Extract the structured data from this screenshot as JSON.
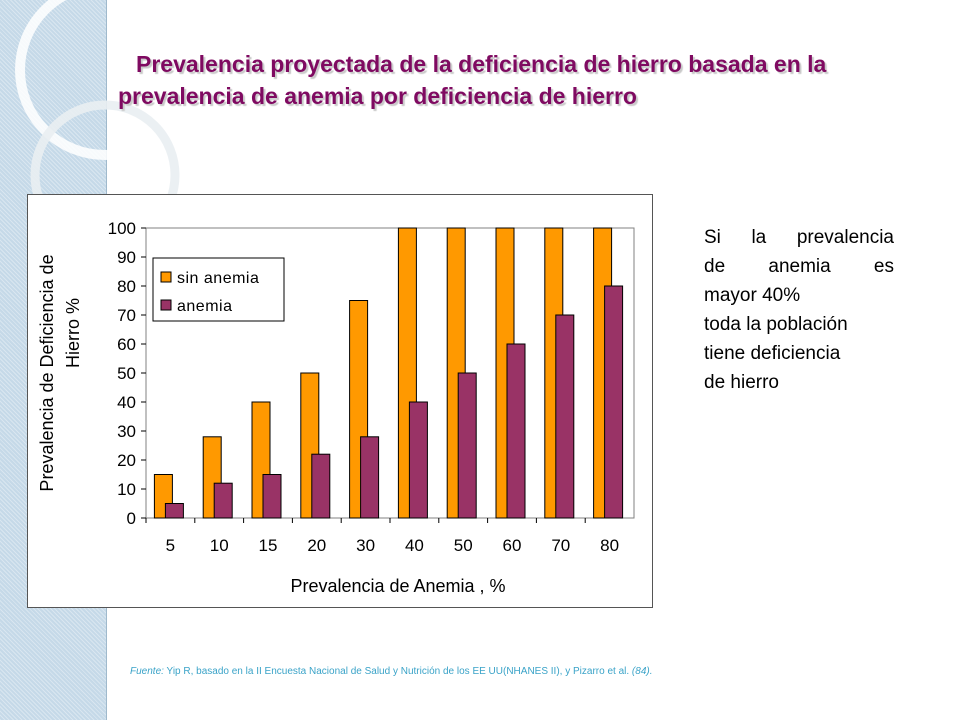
{
  "title": {
    "line1": "Prevalencia proyectada de la deficiencia de hierro basada en la",
    "line2": "prevalencia de anemia por deficiencia de hierro"
  },
  "note": {
    "lines": [
      "Si la prevalencia",
      "de anemia es",
      "mayor 40%",
      "toda la población",
      "tiene deficiencia",
      "de hierro"
    ]
  },
  "source": {
    "label": "Fuente:",
    "text": " Yip R, basado en la II Encuesta Nacional de Salud y Nutrición de los EE UU(NHANES II), y Pizarro et al. ",
    "ref": "(84)."
  },
  "colors": {
    "sin_anemia": "#ff9900",
    "anemia": "#993366",
    "title": "#7f0a61",
    "source": "#3aa3c8"
  },
  "chart_data": {
    "type": "bar",
    "xlabel": "Prevalencia de Anemia , %",
    "ylabel": [
      "Prevalencia de Deficiencia de",
      "Hierro %"
    ],
    "categories": [
      "5",
      "10",
      "15",
      "20",
      "30",
      "40",
      "50",
      "60",
      "70",
      "80"
    ],
    "ylim": [
      0,
      100
    ],
    "yticks": [
      0,
      10,
      20,
      30,
      40,
      50,
      60,
      70,
      80,
      90,
      100
    ],
    "grid": false,
    "legend": "top-left",
    "series": [
      {
        "name": "sin anemia",
        "color": "#ff9900",
        "values": [
          15,
          28,
          40,
          50,
          75,
          100,
          100,
          100,
          100,
          100
        ]
      },
      {
        "name": "anemia",
        "color": "#993366",
        "values": [
          5,
          12,
          15,
          22,
          28,
          40,
          50,
          60,
          70,
          80
        ]
      }
    ]
  }
}
